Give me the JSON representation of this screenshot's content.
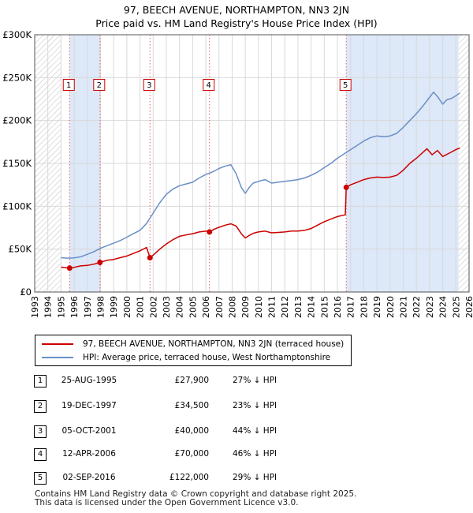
{
  "chart_data": {
    "type": "line",
    "title": "97, BEECH AVENUE, NORTHAMPTON, NN3 2JN",
    "subtitle": "Price paid vs. HM Land Registry's House Price Index (HPI)",
    "xlim": [
      1993,
      2026
    ],
    "ylim": [
      0,
      300000
    ],
    "x_ticks": [
      1993,
      1994,
      1995,
      1996,
      1997,
      1998,
      1999,
      2000,
      2001,
      2002,
      2003,
      2004,
      2005,
      2006,
      2007,
      2008,
      2009,
      2010,
      2011,
      2012,
      2013,
      2014,
      2015,
      2016,
      2017,
      2018,
      2019,
      2020,
      2021,
      2022,
      2023,
      2024,
      2025,
      2026
    ],
    "y_ticks": [
      {
        "value": 0,
        "label": "£0"
      },
      {
        "value": 50000,
        "label": "£50K"
      },
      {
        "value": 100000,
        "label": "£100K"
      },
      {
        "value": 150000,
        "label": "£150K"
      },
      {
        "value": 200000,
        "label": "£200K"
      },
      {
        "value": 250000,
        "label": "£250K"
      },
      {
        "value": 300000,
        "label": "£300K"
      }
    ],
    "hatched_ranges": [
      [
        1993,
        1995.0
      ],
      [
        2025.2,
        2026
      ]
    ],
    "series": [
      {
        "name": "97, BEECH AVENUE, NORTHAMPTON, NN3 2JN (terraced house)",
        "color": "#cc0000",
        "x": [
          1995.0,
          1995.3,
          1995.65,
          1996.0,
          1996.5,
          1997.0,
          1997.5,
          1997.96,
          1998.5,
          1999.0,
          1999.5,
          2000.0,
          2000.5,
          2001.0,
          2001.5,
          2001.76,
          2002.0,
          2002.5,
          2003.0,
          2003.5,
          2004.0,
          2004.5,
          2005.0,
          2005.5,
          2006.0,
          2006.28,
          2006.6,
          2007.0,
          2007.5,
          2007.9,
          2008.3,
          2008.7,
          2009.0,
          2009.3,
          2009.6,
          2010.0,
          2010.5,
          2011.0,
          2011.5,
          2012.0,
          2012.5,
          2013.0,
          2013.5,
          2014.0,
          2014.5,
          2015.0,
          2015.5,
          2016.0,
          2016.6,
          2016.67,
          2017.0,
          2017.5,
          2018.0,
          2018.5,
          2019.0,
          2019.5,
          2020.0,
          2020.5,
          2021.0,
          2021.5,
          2022.0,
          2022.5,
          2022.8,
          2023.2,
          2023.6,
          2024.0,
          2024.5,
          2025.0,
          2025.3
        ],
        "values": [
          29000,
          28500,
          27900,
          28800,
          30500,
          31000,
          32500,
          34500,
          37000,
          38000,
          40000,
          42000,
          45000,
          48000,
          52000,
          40000,
          43000,
          50000,
          56000,
          61000,
          65000,
          66500,
          68000,
          70000,
          71000,
          70000,
          73000,
          75500,
          78000,
          79500,
          77000,
          68000,
          63000,
          66000,
          68500,
          70000,
          71000,
          69000,
          69500,
          70000,
          71000,
          71000,
          72000,
          74000,
          78000,
          82000,
          85000,
          88000,
          90000,
          122000,
          125000,
          128000,
          131000,
          133000,
          134000,
          133500,
          134000,
          136000,
          142000,
          150000,
          156000,
          163000,
          167000,
          160000,
          165000,
          158000,
          162000,
          166000,
          168000
        ]
      },
      {
        "name": "HPI: Average price, terraced house, West Northamptonshire",
        "color": "#6a8fc7",
        "x": [
          1995.0,
          1995.5,
          1996.0,
          1996.5,
          1997.0,
          1997.5,
          1998.0,
          1998.5,
          1999.0,
          1999.5,
          2000.0,
          2000.5,
          2001.0,
          2001.5,
          2002.0,
          2002.5,
          2003.0,
          2003.5,
          2004.0,
          2004.5,
          2005.0,
          2005.5,
          2006.0,
          2006.5,
          2007.0,
          2007.5,
          2007.9,
          2008.3,
          2008.7,
          2009.0,
          2009.3,
          2009.6,
          2010.0,
          2010.5,
          2011.0,
          2011.5,
          2012.0,
          2012.5,
          2013.0,
          2013.5,
          2014.0,
          2014.5,
          2015.0,
          2015.5,
          2016.0,
          2016.5,
          2017.0,
          2017.5,
          2018.0,
          2018.5,
          2019.0,
          2019.5,
          2020.0,
          2020.5,
          2021.0,
          2021.5,
          2022.0,
          2022.5,
          2022.9,
          2023.3,
          2023.6,
          2024.0,
          2024.3,
          2024.7,
          2025.0,
          2025.3
        ],
        "values": [
          40000,
          39500,
          39800,
          41000,
          44000,
          47000,
          51000,
          54000,
          57000,
          60000,
          64000,
          68000,
          72000,
          80000,
          92000,
          104000,
          114000,
          120000,
          124000,
          126000,
          128000,
          133000,
          137000,
          140000,
          144000,
          147000,
          148500,
          138000,
          122000,
          115000,
          122000,
          127000,
          129000,
          131000,
          127000,
          128000,
          129000,
          130000,
          131000,
          133000,
          136000,
          140000,
          145000,
          150000,
          156000,
          161000,
          166000,
          171000,
          176000,
          180000,
          182000,
          181000,
          182000,
          185000,
          192000,
          200000,
          208000,
          217000,
          225000,
          233000,
          228000,
          219000,
          224000,
          226000,
          229000,
          232000
        ]
      }
    ],
    "sales": [
      {
        "num": "1",
        "x": 1995.65,
        "value": 27900
      },
      {
        "num": "2",
        "x": 1997.96,
        "value": 34500
      },
      {
        "num": "3",
        "x": 2001.76,
        "value": 40000
      },
      {
        "num": "4",
        "x": 2006.28,
        "value": 70000
      },
      {
        "num": "5",
        "x": 2016.67,
        "value": 122000
      }
    ],
    "shaded_ranges": [
      [
        1995.65,
        1997.96
      ],
      [
        2016.67,
        2025.2
      ]
    ]
  },
  "titles": {
    "line1": "97, BEECH AVENUE, NORTHAMPTON, NN3 2JN",
    "line2": "Price paid vs. HM Land Registry's House Price Index (HPI)"
  },
  "legend": {
    "property": "97, BEECH AVENUE, NORTHAMPTON, NN3 2JN (terraced house)",
    "hpi": "HPI: Average price, terraced house, West Northamptonshire",
    "property_color": "#cc0000",
    "hpi_color": "#6a8fc7"
  },
  "sales_table": [
    {
      "num": "1",
      "date": "25-AUG-1995",
      "price": "£27,900",
      "hpi": "27% ↓ HPI"
    },
    {
      "num": "2",
      "date": "19-DEC-1997",
      "price": "£34,500",
      "hpi": "23% ↓ HPI"
    },
    {
      "num": "3",
      "date": "05-OCT-2001",
      "price": "£40,000",
      "hpi": "44% ↓ HPI"
    },
    {
      "num": "4",
      "date": "12-APR-2006",
      "price": "£70,000",
      "hpi": "46% ↓ HPI"
    },
    {
      "num": "5",
      "date": "02-SEP-2016",
      "price": "£122,000",
      "hpi": "29% ↓ HPI"
    }
  ],
  "footer": {
    "line1": "Contains HM Land Registry data © Crown copyright and database right 2025.",
    "line2": "This data is licensed under the Open Government Licence v3.0."
  }
}
